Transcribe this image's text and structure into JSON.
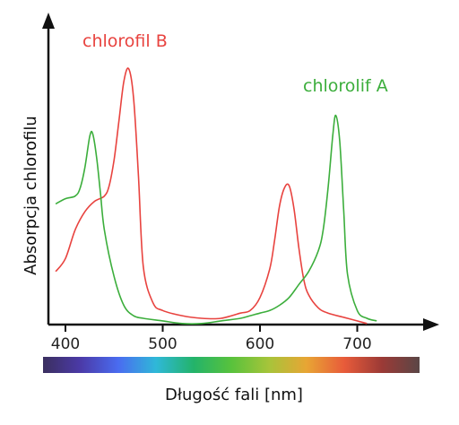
{
  "chart_data": {
    "type": "line",
    "xlabel": "Długość fali [nm]",
    "ylabel": "Absorpcja chlorofilu",
    "xlim": [
      390,
      730
    ],
    "ylim": [
      0,
      1
    ],
    "x_ticks": [
      400,
      500,
      600,
      700
    ],
    "x_tick_labels": [
      "400",
      "500",
      "600",
      "700"
    ],
    "y_ticks_shown": false,
    "spectrum_bar": [
      "#3b2f5f",
      "#4b3aa8",
      "#4a6cf0",
      "#2fb8d8",
      "#23b36a",
      "#58c23c",
      "#a7c43a",
      "#e8a534",
      "#e85b3a",
      "#9b3a36",
      "#5a4646"
    ],
    "series": [
      {
        "name": "chlorofil B",
        "color": "#e8433f",
        "x": [
          390,
          400,
          410,
          420,
          430,
          440,
          445,
          450,
          455,
          460,
          465,
          470,
          475,
          480,
          490,
          500,
          520,
          540,
          560,
          580,
          590,
          600,
          610,
          615,
          620,
          625,
          630,
          635,
          640,
          645,
          650,
          660,
          670,
          690,
          710
        ],
        "y": [
          0.18,
          0.23,
          0.34,
          0.41,
          0.45,
          0.47,
          0.51,
          0.61,
          0.76,
          0.91,
          0.96,
          0.85,
          0.55,
          0.2,
          0.06,
          0.03,
          0.01,
          0.0,
          0.0,
          0.02,
          0.03,
          0.08,
          0.19,
          0.3,
          0.43,
          0.5,
          0.51,
          0.42,
          0.27,
          0.15,
          0.09,
          0.04,
          0.02,
          0.0,
          -0.02
        ]
      },
      {
        "name": "chlorolif A",
        "color": "#3cae3c",
        "x": [
          390,
          400,
          410,
          415,
          420,
          425,
          428,
          432,
          436,
          440,
          450,
          460,
          470,
          480,
          500,
          520,
          540,
          560,
          580,
          590,
          600,
          610,
          620,
          630,
          640,
          650,
          660,
          665,
          670,
          675,
          678,
          682,
          686,
          690,
          700,
          710,
          720
        ],
        "y": [
          0.44,
          0.46,
          0.47,
          0.5,
          0.58,
          0.7,
          0.71,
          0.62,
          0.48,
          0.34,
          0.16,
          0.05,
          0.01,
          0.0,
          -0.01,
          -0.02,
          -0.02,
          -0.01,
          0.0,
          0.01,
          0.02,
          0.03,
          0.05,
          0.08,
          0.13,
          0.18,
          0.26,
          0.34,
          0.5,
          0.71,
          0.78,
          0.68,
          0.42,
          0.17,
          0.03,
          0.0,
          -0.01
        ]
      }
    ]
  },
  "labels": {
    "series_b": "chlorofil B",
    "series_a": "chlorolif A"
  }
}
